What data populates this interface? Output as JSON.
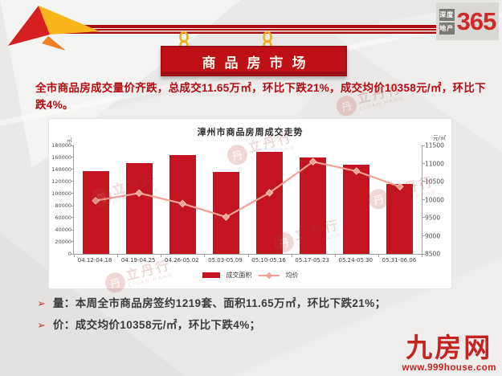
{
  "brand": {
    "box1": "深度",
    "box2": "地产",
    "number": "365"
  },
  "header": {
    "sign_title": "商品房市场"
  },
  "summary": "全市商品房成交量价齐跌，总成交11.65万㎡，环比下跌21%，成交均价10358元/㎡，环比下跌4%。",
  "chart_data": {
    "type": "bar",
    "title": "漳州市商品房周成交走势",
    "categories": [
      "04.12-04.18",
      "04.19-04.25",
      "04.26-05.02",
      "05.03-05.09",
      "05.10-05.16",
      "05.17-05.23",
      "05.24-05.30",
      "05.31-06.06"
    ],
    "series": [
      {
        "name": "成交面积",
        "type": "bar",
        "axis": "left",
        "color": "#c31420",
        "values": [
          137000,
          151000,
          163500,
          135500,
          170000,
          160500,
          147500,
          116500
        ]
      },
      {
        "name": "均价",
        "type": "line",
        "axis": "right",
        "color": "#f2a093",
        "values": [
          9970,
          10180,
          9890,
          9520,
          10190,
          11050,
          10790,
          10358
        ]
      }
    ],
    "left_axis": {
      "unit": "㎡",
      "min": 0,
      "max": 180000,
      "step": 20000
    },
    "right_axis": {
      "unit": "元/㎡",
      "min": 8500,
      "max": 11500,
      "step": 500
    },
    "legend_position": "bottom",
    "grid": false
  },
  "bullets": [
    "量：本周全市商品房签约1219套、面积11.65万㎡，环比下跌21%；",
    "价：成交均价10358元/㎡，环比下跌4%；"
  ],
  "bullet_icon": "➢",
  "watermark": {
    "glyph": "丹",
    "text": "立丹行",
    "sub": "LIDAN HANG"
  },
  "footer": {
    "logo": "九房网",
    "site": "www.999house.com"
  },
  "colors": {
    "accent_red": "#bf1016",
    "bar_red": "#c31420",
    "line_salmon": "#f2a093",
    "summary_red": "#b50b10",
    "chain_yellow": "#f0ae1b"
  }
}
